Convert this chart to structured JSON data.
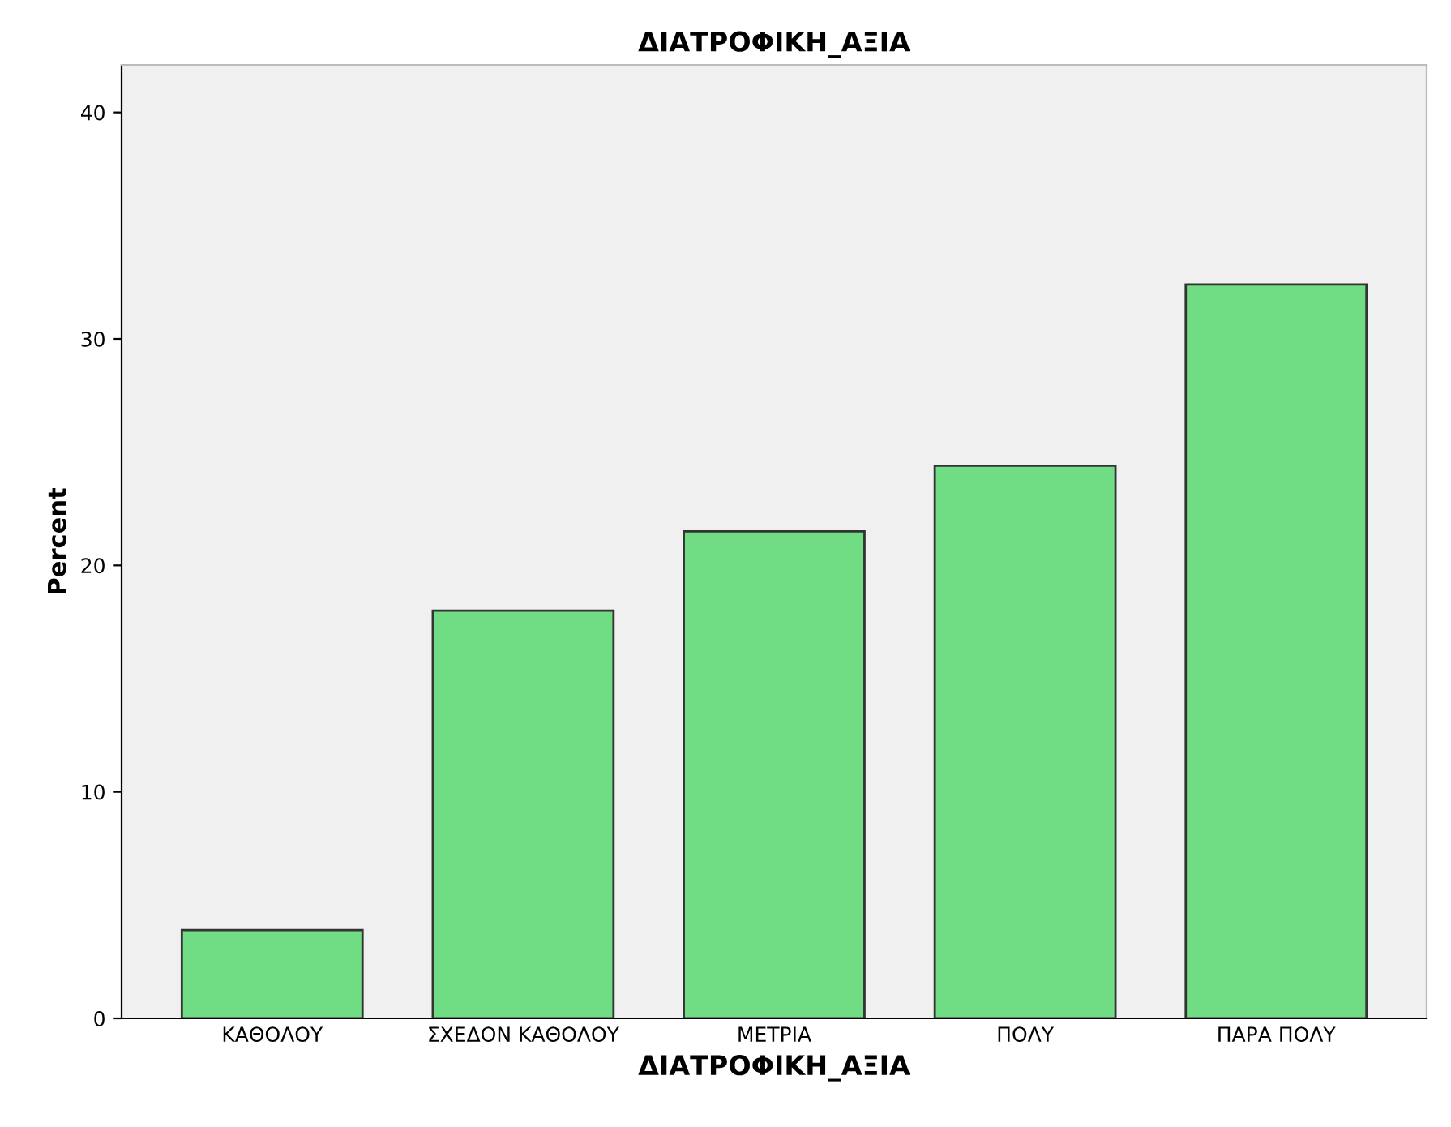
{
  "chart_data": {
    "type": "bar",
    "title": "ΔΙΑΤΡΟΦΙΚΗ_ΑΞΙΑ",
    "xlabel": "ΔΙΑΤΡΟΦΙΚΗ_ΑΞΙΑ",
    "ylabel": "Percent",
    "categories": [
      "ΚΑΘΟΛΟΥ",
      "ΣΧΕΔΟΝ ΚΑΘΟΛΟΥ",
      "ΜΕΤΡΙΑ",
      "ΠΟΛΥ",
      "ΠΑΡΑ ΠΟΛΥ"
    ],
    "values": [
      3.9,
      18.0,
      21.5,
      24.4,
      32.4
    ],
    "color": "#70dc84",
    "ylim": [
      0,
      42.1
    ],
    "yticks": [
      0,
      10,
      20,
      30,
      40
    ],
    "grid": false,
    "legend": false
  }
}
